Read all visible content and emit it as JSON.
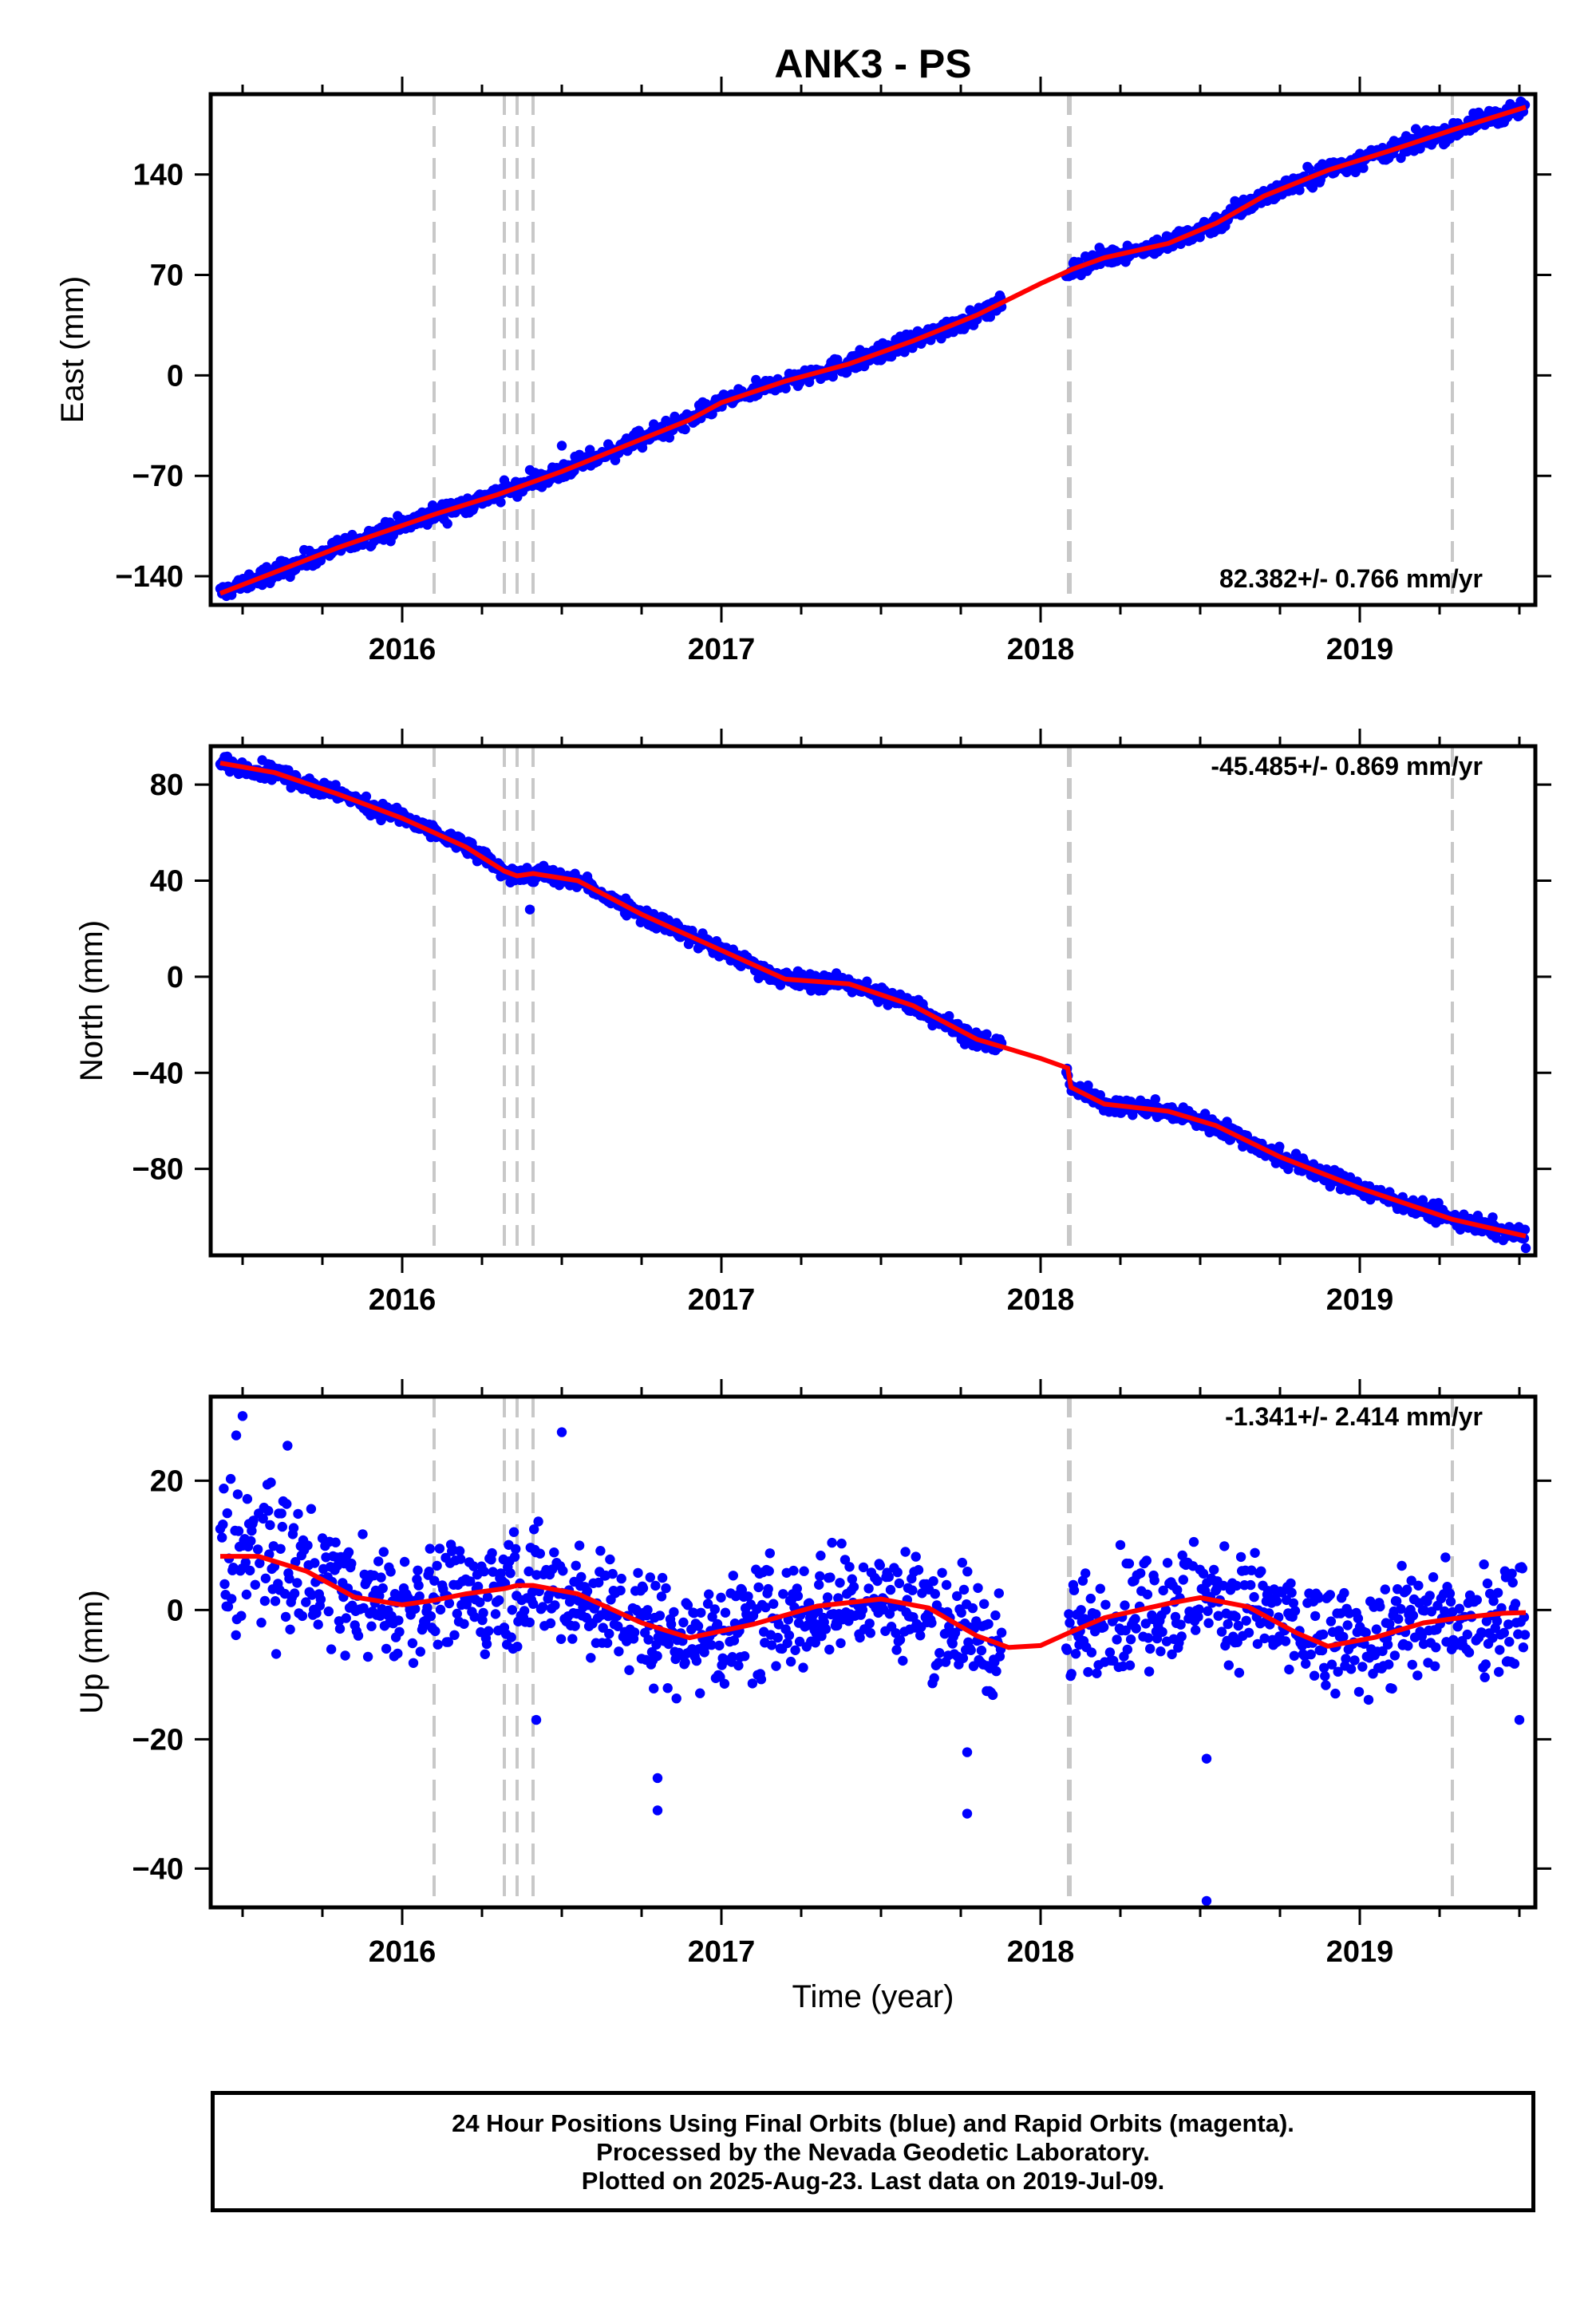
{
  "title": "ANK3 - PS",
  "xlabel": "Time (year)",
  "footer": {
    "line1": "24 Hour Positions Using Final Orbits (blue) and Rapid Orbits (magenta).",
    "line2": "Processed by the Nevada Geodetic Laboratory.",
    "line3": "Plotted on 2025-Aug-23. Last data on 2019-Jul-09."
  },
  "colors": {
    "points": "#0000ff",
    "fit": "#ff0000",
    "events": "#c8c8c8",
    "frame": "#000000"
  },
  "chart_data": [
    {
      "type": "scatter",
      "ylabel": "East (mm)",
      "rate_label": "82.382+/- 0.766 mm/yr",
      "rate_position": "bottom-right",
      "xlim": [
        2015.4,
        2019.55
      ],
      "ylim": [
        -160,
        196
      ],
      "xticks": [
        2016,
        2017,
        2018,
        2019
      ],
      "yticks": [
        -140,
        -70,
        0,
        70,
        140
      ],
      "event_lines": [
        2016.1,
        2016.32,
        2016.36,
        2016.41,
        2018.09,
        2019.29
      ],
      "fit": [
        [
          2015.43,
          -152
        ],
        [
          2015.8,
          -120
        ],
        [
          2016.1,
          -97
        ],
        [
          2016.3,
          -83
        ],
        [
          2016.5,
          -67
        ],
        [
          2016.7,
          -49
        ],
        [
          2016.9,
          -31
        ],
        [
          2017.0,
          -19
        ],
        [
          2017.2,
          -4
        ],
        [
          2017.4,
          8
        ],
        [
          2017.6,
          24
        ],
        [
          2017.8,
          42
        ],
        [
          2018.0,
          64
        ],
        [
          2018.08,
          72
        ],
        [
          2018.1,
          74
        ],
        [
          2018.2,
          82
        ],
        [
          2018.4,
          92
        ],
        [
          2018.55,
          106
        ],
        [
          2018.7,
          125
        ],
        [
          2018.9,
          143
        ],
        [
          2019.1,
          157
        ],
        [
          2019.29,
          171
        ],
        [
          2019.52,
          187
        ]
      ],
      "noise": 3.2,
      "outliers": [
        [
          2016.5,
          -49
        ],
        [
          2016.4,
          -66
        ]
      ],
      "grid": false
    },
    {
      "type": "scatter",
      "ylabel": "North (mm)",
      "rate_label": "-45.485+/- 0.869 mm/yr",
      "rate_position": "top-right",
      "xlim": [
        2015.4,
        2019.55
      ],
      "ylim": [
        -116,
        96
      ],
      "xticks": [
        2016,
        2017,
        2018,
        2019
      ],
      "yticks": [
        -80,
        -40,
        0,
        40,
        80
      ],
      "event_lines": [
        2016.1,
        2016.32,
        2016.36,
        2016.41,
        2018.09,
        2019.29
      ],
      "fit": [
        [
          2015.43,
          89
        ],
        [
          2015.6,
          85
        ],
        [
          2015.8,
          76
        ],
        [
          2016.0,
          66
        ],
        [
          2016.2,
          54
        ],
        [
          2016.32,
          44
        ],
        [
          2016.36,
          42
        ],
        [
          2016.41,
          43
        ],
        [
          2016.55,
          40
        ],
        [
          2016.75,
          26
        ],
        [
          2017.0,
          11
        ],
        [
          2017.2,
          -1
        ],
        [
          2017.4,
          -3
        ],
        [
          2017.6,
          -12
        ],
        [
          2017.8,
          -26
        ],
        [
          2018.0,
          -34
        ],
        [
          2018.085,
          -38
        ],
        [
          2018.095,
          -46
        ],
        [
          2018.2,
          -53
        ],
        [
          2018.4,
          -56
        ],
        [
          2018.55,
          -62
        ],
        [
          2018.75,
          -75
        ],
        [
          2019.0,
          -88
        ],
        [
          2019.29,
          -101
        ],
        [
          2019.52,
          -108
        ]
      ],
      "noise": 1.8,
      "outliers": [
        [
          2016.4,
          28
        ],
        [
          2019.52,
          -113
        ]
      ],
      "grid": false
    },
    {
      "type": "scatter",
      "ylabel": "Up (mm)",
      "rate_label": "-1.341+/- 2.414 mm/yr",
      "rate_position": "top-right",
      "xlim": [
        2015.4,
        2019.55
      ],
      "ylim": [
        -46,
        33
      ],
      "xticks": [
        2016,
        2017,
        2018,
        2019
      ],
      "yticks": [
        -40,
        -20,
        0,
        20
      ],
      "event_lines": [
        2016.1,
        2016.32,
        2016.36,
        2016.41,
        2018.09,
        2019.29
      ],
      "fit": [
        [
          2015.43,
          8.3
        ],
        [
          2015.55,
          8.3
        ],
        [
          2015.7,
          6
        ],
        [
          2015.85,
          2
        ],
        [
          2016.0,
          0.8
        ],
        [
          2016.1,
          1.5
        ],
        [
          2016.2,
          2.5
        ],
        [
          2016.32,
          3.3
        ],
        [
          2016.36,
          3.8
        ],
        [
          2016.41,
          3.8
        ],
        [
          2016.55,
          2.5
        ],
        [
          2016.75,
          -2
        ],
        [
          2016.9,
          -4.3
        ],
        [
          2017.1,
          -2.2
        ],
        [
          2017.3,
          0.6
        ],
        [
          2017.5,
          1.7
        ],
        [
          2017.65,
          0.3
        ],
        [
          2017.8,
          -4
        ],
        [
          2017.9,
          -5.8
        ],
        [
          2018.0,
          -5.5
        ],
        [
          2018.09,
          -3.5
        ],
        [
          2018.2,
          -1.2
        ],
        [
          2018.4,
          1
        ],
        [
          2018.5,
          1.9
        ],
        [
          2018.65,
          0.5
        ],
        [
          2018.8,
          -3.5
        ],
        [
          2018.9,
          -5.6
        ],
        [
          2019.05,
          -4.2
        ],
        [
          2019.2,
          -2
        ],
        [
          2019.3,
          -1.3
        ],
        [
          2019.45,
          -0.5
        ],
        [
          2019.52,
          -0.4
        ]
      ],
      "noise": 4.5,
      "outliers": [
        [
          2015.5,
          30
        ],
        [
          2015.48,
          27
        ],
        [
          2016.5,
          27.5
        ],
        [
          2016.8,
          -31
        ],
        [
          2016.8,
          -26
        ],
        [
          2017.77,
          -31.5
        ],
        [
          2017.77,
          -22
        ],
        [
          2018.52,
          -45
        ],
        [
          2018.52,
          -23
        ],
        [
          2019.5,
          -17
        ],
        [
          2016.42,
          -17
        ]
      ],
      "grid": false
    }
  ]
}
